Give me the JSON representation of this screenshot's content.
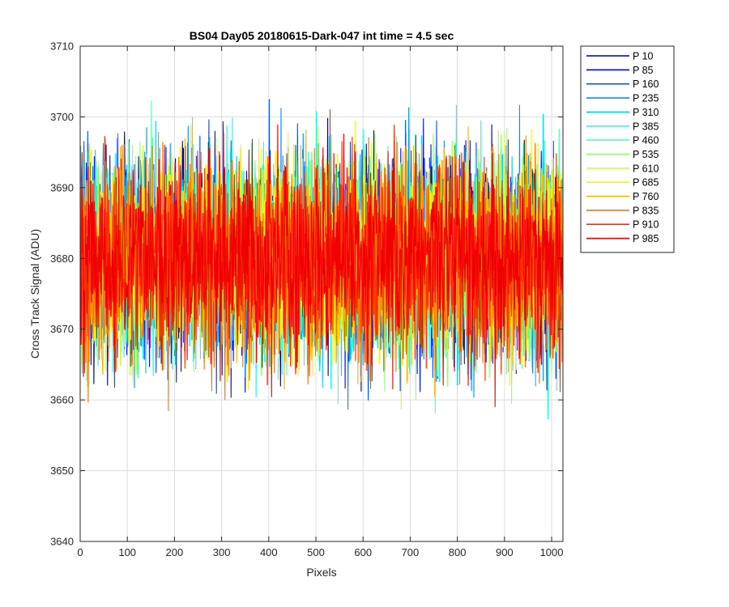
{
  "chart_data": {
    "type": "line",
    "title": "BS04 Day05 20180615-Dark-047 int time = 4.5 sec",
    "xlabel": "Pixels",
    "ylabel": "Cross Track Signal (ADU)",
    "xlim": [
      0,
      1024
    ],
    "ylim": [
      3640,
      3710
    ],
    "xticks": [
      "0",
      "100",
      "200",
      "300",
      "400",
      "500",
      "600",
      "700",
      "800",
      "900",
      "1000"
    ],
    "yticks": [
      "3640",
      "3650",
      "3660",
      "3670",
      "3680",
      "3690",
      "3700",
      "3710"
    ],
    "grid": true,
    "legend_position": "outside-top-right",
    "center_value": 3680,
    "series": [
      {
        "name": "P 10",
        "color": "#00008f"
      },
      {
        "name": "P 85",
        "color": "#0010ff"
      },
      {
        "name": "P 160",
        "color": "#0050ff"
      },
      {
        "name": "P 235",
        "color": "#0090ff"
      },
      {
        "name": "P 310",
        "color": "#00cfff"
      },
      {
        "name": "P 385",
        "color": "#10ffef"
      },
      {
        "name": "P 460",
        "color": "#50ffaf"
      },
      {
        "name": "P 535",
        "color": "#90ff6f"
      },
      {
        "name": "P 610",
        "color": "#cfff30"
      },
      {
        "name": "P 685",
        "color": "#ffef00"
      },
      {
        "name": "P 760",
        "color": "#ffb000"
      },
      {
        "name": "P 835",
        "color": "#ff7000"
      },
      {
        "name": "P 910",
        "color": "#ff3000"
      },
      {
        "name": "P 985",
        "color": "#f00000"
      }
    ]
  }
}
